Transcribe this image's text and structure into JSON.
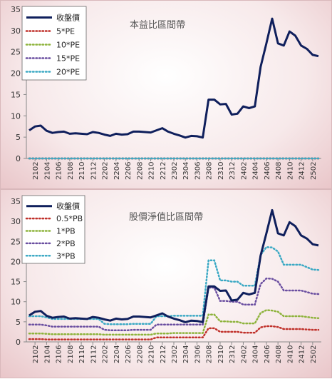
{
  "chart_data": [
    {
      "type": "line",
      "title": "本益比區間帶",
      "ylim": [
        0,
        35
      ],
      "yticks": [
        0,
        5,
        10,
        15,
        20,
        25,
        30,
        35
      ],
      "x": [
        "2101",
        "2102",
        "2103",
        "2104",
        "2105",
        "2106",
        "2107",
        "2108",
        "2109",
        "2110",
        "2111",
        "2112",
        "2201",
        "2202",
        "2203",
        "2204",
        "2205",
        "2206",
        "2207",
        "2208",
        "2209",
        "2210",
        "2211",
        "2212",
        "2301",
        "2302",
        "2303",
        "2304",
        "2305",
        "2306",
        "2307",
        "2308",
        "2309",
        "2310",
        "2311",
        "2312",
        "2401",
        "2402",
        "2403",
        "2404",
        "2405",
        "2406",
        "2407",
        "2408",
        "2409",
        "2410",
        "2411",
        "2412",
        "2501",
        "2502",
        "2503"
      ],
      "xticks": [
        "2102",
        "2104",
        "2106",
        "2108",
        "2110",
        "2112",
        "2202",
        "2204",
        "2206",
        "2208",
        "2210",
        "2212",
        "2302",
        "2304",
        "2306",
        "2308",
        "2310",
        "2312",
        "2402",
        "2404",
        "2406",
        "2408",
        "2410",
        "2412",
        "2502"
      ],
      "series": [
        {
          "name": "收盤價",
          "color": "#0f1f5c",
          "style": "solid",
          "values": [
            6.6,
            7.5,
            7.7,
            6.5,
            6.0,
            6.2,
            6.3,
            5.8,
            5.9,
            5.8,
            5.7,
            6.2,
            6.0,
            5.6,
            5.3,
            5.8,
            5.6,
            5.7,
            6.3,
            6.3,
            6.2,
            6.1,
            6.6,
            7.1,
            6.3,
            5.8,
            5.4,
            4.9,
            5.3,
            5.2,
            4.9,
            13.8,
            13.8,
            12.7,
            12.8,
            10.3,
            10.5,
            12.2,
            11.8,
            12.2,
            21.5,
            27.0,
            32.8,
            27.0,
            26.5,
            29.8,
            28.8,
            26.5,
            25.7,
            24.3,
            24.0
          ]
        },
        {
          "name": "5*PE",
          "color": "#c0302a",
          "style": "dotted",
          "values": [
            0,
            0,
            0,
            0,
            0,
            0,
            0,
            0,
            0,
            0,
            0,
            0,
            0,
            0,
            0,
            0,
            0,
            0,
            0,
            0,
            0,
            0,
            0,
            0,
            0,
            0,
            0,
            0,
            0,
            0,
            0,
            0,
            0,
            0,
            0,
            0,
            0,
            0,
            0,
            0,
            0,
            0,
            0,
            0,
            0,
            0,
            0,
            0,
            0,
            0,
            0
          ]
        },
        {
          "name": "10*PE",
          "color": "#8db33b",
          "style": "dotted",
          "values": [
            0,
            0,
            0,
            0,
            0,
            0,
            0,
            0,
            0,
            0,
            0,
            0,
            0,
            0,
            0,
            0,
            0,
            0,
            0,
            0,
            0,
            0,
            0,
            0,
            0,
            0,
            0,
            0,
            0,
            0,
            0,
            0,
            0,
            0,
            0,
            0,
            0,
            0,
            0,
            0,
            0,
            0,
            0,
            0,
            0,
            0,
            0,
            0,
            0,
            0,
            0
          ]
        },
        {
          "name": "15*PE",
          "color": "#6a4ea0",
          "style": "dotted",
          "values": [
            0,
            0,
            0,
            0,
            0,
            0,
            0,
            0,
            0,
            0,
            0,
            0,
            0,
            0,
            0,
            0,
            0,
            0,
            0,
            0,
            0,
            0,
            0,
            0,
            0,
            0,
            0,
            0,
            0,
            0,
            0,
            0,
            0,
            0,
            0,
            0,
            0,
            0,
            0,
            0,
            0,
            0,
            0,
            0,
            0,
            0,
            0,
            0,
            0,
            0,
            0
          ]
        },
        {
          "name": "20*PE",
          "color": "#3ba9c4",
          "style": "dotted",
          "values": [
            0,
            0,
            0,
            0,
            0,
            0,
            0,
            0,
            0,
            0,
            0,
            0,
            0,
            0,
            0,
            0,
            0,
            0,
            0,
            0,
            0,
            0,
            0,
            0,
            0,
            0,
            0,
            0,
            0,
            0,
            0,
            0,
            0,
            0,
            0,
            0,
            0,
            0,
            0,
            0,
            0,
            0,
            0,
            0,
            0,
            0,
            0,
            0,
            0,
            0,
            0
          ]
        }
      ],
      "legend": "top-left",
      "grid": false
    },
    {
      "type": "line",
      "title": "股價淨值比區間帶",
      "ylim": [
        0,
        35
      ],
      "yticks": [
        0,
        5,
        10,
        15,
        20,
        25,
        30,
        35
      ],
      "x": [
        "2101",
        "2102",
        "2103",
        "2104",
        "2105",
        "2106",
        "2107",
        "2108",
        "2109",
        "2110",
        "2111",
        "2112",
        "2201",
        "2202",
        "2203",
        "2204",
        "2205",
        "2206",
        "2207",
        "2208",
        "2209",
        "2210",
        "2211",
        "2212",
        "2301",
        "2302",
        "2303",
        "2304",
        "2305",
        "2306",
        "2307",
        "2308",
        "2309",
        "2310",
        "2311",
        "2312",
        "2401",
        "2402",
        "2403",
        "2404",
        "2405",
        "2406",
        "2407",
        "2408",
        "2409",
        "2410",
        "2411",
        "2412",
        "2501",
        "2502",
        "2503"
      ],
      "xticks": [
        "2102",
        "2104",
        "2106",
        "2108",
        "2110",
        "2112",
        "2202",
        "2204",
        "2206",
        "2208",
        "2210",
        "2212",
        "2302",
        "2304",
        "2306",
        "2308",
        "2310",
        "2312",
        "2402",
        "2404",
        "2406",
        "2408",
        "2410",
        "2412",
        "2502"
      ],
      "series": [
        {
          "name": "收盤價",
          "color": "#0f1f5c",
          "style": "solid",
          "values": [
            6.6,
            7.5,
            7.7,
            6.5,
            6.0,
            6.2,
            6.3,
            5.8,
            5.9,
            5.8,
            5.7,
            6.2,
            6.0,
            5.6,
            5.3,
            5.8,
            5.6,
            5.7,
            6.3,
            6.3,
            6.2,
            6.1,
            6.6,
            7.1,
            6.3,
            5.8,
            5.4,
            4.9,
            5.3,
            5.2,
            4.9,
            13.8,
            13.8,
            12.7,
            12.8,
            10.3,
            10.5,
            12.2,
            11.8,
            12.2,
            21.5,
            27.0,
            32.8,
            27.0,
            26.5,
            29.8,
            28.8,
            26.5,
            25.7,
            24.3,
            24.0
          ]
        },
        {
          "name": "0.5*PB",
          "color": "#c0302a",
          "style": "dotted",
          "values": [
            0.7,
            0.7,
            0.7,
            0.6,
            0.6,
            0.6,
            0.6,
            0.6,
            0.6,
            0.6,
            0.6,
            0.6,
            0.6,
            0.6,
            0.6,
            0.6,
            0.6,
            0.6,
            0.6,
            0.6,
            0.6,
            0.6,
            1.1,
            1.1,
            1.1,
            1.1,
            1.1,
            1.1,
            1.1,
            1.1,
            1.1,
            3.4,
            3.4,
            2.5,
            2.5,
            2.5,
            2.5,
            2.3,
            2.3,
            2.3,
            3.6,
            3.9,
            3.9,
            3.7,
            3.2,
            3.2,
            3.2,
            3.2,
            3.1,
            3.0,
            3.0
          ]
        },
        {
          "name": "1*PB",
          "color": "#8db33b",
          "style": "dotted",
          "values": [
            2.1,
            2.1,
            2.1,
            2.0,
            1.9,
            1.9,
            1.9,
            1.9,
            1.9,
            1.9,
            1.9,
            1.9,
            1.9,
            1.8,
            1.8,
            1.8,
            1.8,
            1.8,
            1.8,
            1.8,
            1.8,
            1.8,
            2.1,
            2.1,
            2.1,
            2.2,
            2.2,
            2.2,
            2.2,
            2.2,
            2.2,
            6.8,
            6.8,
            5.1,
            5.1,
            5.0,
            5.0,
            4.6,
            4.6,
            4.6,
            7.2,
            7.9,
            7.8,
            7.5,
            6.4,
            6.4,
            6.4,
            6.4,
            6.2,
            6.0,
            5.9
          ]
        },
        {
          "name": "2*PB",
          "color": "#6a4ea0",
          "style": "dotted",
          "values": [
            4.3,
            4.3,
            4.3,
            4.1,
            3.8,
            3.8,
            3.8,
            3.8,
            3.8,
            3.8,
            3.8,
            3.8,
            3.8,
            3.0,
            2.9,
            2.9,
            2.9,
            2.9,
            3.0,
            3.0,
            3.0,
            3.0,
            4.3,
            4.3,
            4.3,
            4.3,
            4.3,
            4.3,
            4.3,
            4.3,
            4.3,
            13.5,
            13.5,
            10.2,
            10.2,
            10.0,
            10.0,
            9.3,
            9.3,
            9.3,
            14.4,
            15.8,
            15.7,
            15.0,
            12.8,
            12.8,
            12.8,
            12.8,
            12.4,
            12.0,
            11.9
          ]
        },
        {
          "name": "3*PB",
          "color": "#3ba9c4",
          "style": "dotted",
          "values": [
            6.4,
            6.4,
            6.4,
            6.1,
            5.7,
            5.7,
            5.7,
            5.7,
            5.7,
            5.7,
            5.7,
            5.7,
            5.7,
            4.5,
            4.4,
            4.4,
            4.4,
            4.4,
            4.5,
            4.5,
            4.5,
            4.5,
            6.4,
            6.4,
            6.4,
            6.5,
            6.5,
            6.5,
            6.5,
            6.5,
            6.5,
            20.3,
            20.3,
            15.3,
            15.3,
            15.0,
            15.0,
            14.0,
            14.0,
            14.0,
            21.6,
            23.6,
            23.5,
            22.5,
            19.2,
            19.2,
            19.2,
            19.2,
            18.6,
            18.0,
            17.9
          ]
        }
      ],
      "legend": "top-left",
      "grid": false
    }
  ]
}
